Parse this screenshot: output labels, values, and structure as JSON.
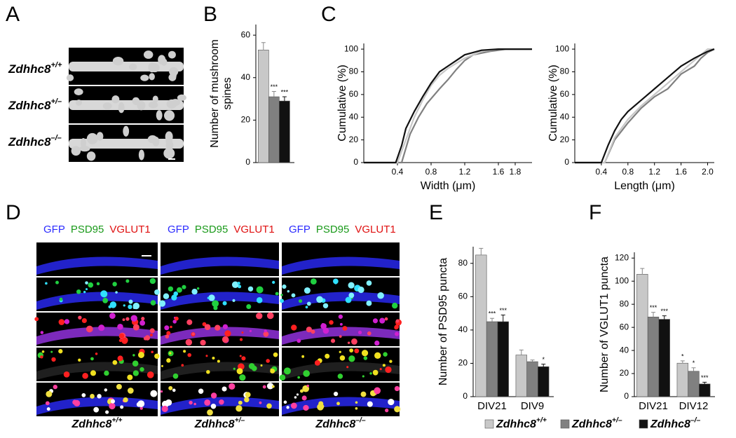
{
  "panel_labels": [
    "A",
    "B",
    "C",
    "D",
    "E",
    "F"
  ],
  "genotypes": [
    {
      "name": "Zdhhc8",
      "superscript": "+/+",
      "color": "#c8c8c8"
    },
    {
      "name": "Zdhhc8",
      "superscript": "+/–",
      "color": "#808080"
    },
    {
      "name": "Zdhhc8",
      "superscript": "–/–",
      "color": "#111111"
    }
  ],
  "channels": [
    {
      "name": "GFP",
      "color": "#2b2bff"
    },
    {
      "name": "PSD95",
      "color": "#1a9a1a"
    },
    {
      "name": "VGLUT1",
      "color": "#e01010"
    }
  ],
  "chart_data": [
    {
      "type": "bar",
      "ylabel": [
        "Number of mushroom",
        "spines"
      ],
      "categories": [
        null
      ],
      "ylim": [
        0,
        65
      ],
      "yticks": [
        0,
        20,
        40,
        60
      ],
      "series": [
        {
          "color": "#c8c8c8",
          "values": [
            53
          ],
          "errors": [
            3.5
          ],
          "significance": [
            null
          ]
        },
        {
          "color": "#808080",
          "values": [
            31
          ],
          "errors": [
            2.5
          ],
          "significance": [
            "***"
          ]
        },
        {
          "color": "#111111",
          "values": [
            29
          ],
          "errors": [
            2
          ],
          "significance": [
            "***"
          ]
        }
      ]
    },
    {
      "type": "line",
      "xlabel": "Width (μm)",
      "ylabel": "Cumulative (%)",
      "xlim": [
        0,
        2.0
      ],
      "xticks": [
        0.4,
        0.8,
        1.2,
        1.6,
        1.8
      ],
      "ylim": [
        0,
        105
      ],
      "yticks": [
        0,
        20,
        40,
        60,
        80,
        100
      ],
      "series": [
        {
          "color": "#808080",
          "x": [
            0,
            0.45,
            0.55,
            0.65,
            0.75,
            0.9,
            1.0,
            1.1,
            1.2,
            1.3,
            1.5,
            1.7,
            2.0
          ],
          "values": [
            0,
            0,
            25,
            40,
            52,
            65,
            73,
            82,
            90,
            95,
            98,
            100,
            100
          ]
        },
        {
          "color": "#c8c8c8",
          "x": [
            0,
            0.4,
            0.5,
            0.6,
            0.7,
            0.8,
            0.9,
            1.0,
            1.2,
            1.4,
            1.6,
            2.0
          ],
          "values": [
            0,
            0,
            20,
            40,
            55,
            68,
            77,
            83,
            92,
            98,
            100,
            100
          ]
        },
        {
          "color": "#111111",
          "x": [
            0,
            0.38,
            0.45,
            0.5,
            0.6,
            0.7,
            0.8,
            0.9,
            1.0,
            1.1,
            1.2,
            1.4,
            1.6,
            2.0
          ],
          "values": [
            0,
            0,
            15,
            30,
            45,
            58,
            70,
            80,
            85,
            90,
            95,
            99,
            100,
            100
          ]
        }
      ]
    },
    {
      "type": "line",
      "xlabel": "Length (μm)",
      "ylabel": "Cumulative (%)",
      "xlim": [
        0,
        2.1
      ],
      "xticks": [
        0.4,
        0.8,
        1.2,
        1.6,
        {
          "value": 2,
          "label": "2.0"
        }
      ],
      "ylim": [
        0,
        105
      ],
      "yticks": [
        0,
        20,
        40,
        60,
        80,
        100
      ],
      "series": [
        {
          "color": "#808080",
          "x": [
            0,
            0.45,
            0.6,
            0.8,
            1.0,
            1.2,
            1.4,
            1.6,
            1.8,
            1.9,
            2.0,
            2.1
          ],
          "values": [
            0,
            0,
            20,
            35,
            48,
            58,
            65,
            78,
            85,
            92,
            97,
            100
          ]
        },
        {
          "color": "#c8c8c8",
          "x": [
            0,
            0.45,
            0.6,
            0.8,
            1.0,
            1.2,
            1.4,
            1.6,
            1.8,
            2.0,
            2.1
          ],
          "values": [
            0,
            0,
            22,
            38,
            50,
            60,
            70,
            80,
            90,
            100,
            100
          ]
        },
        {
          "color": "#111111",
          "x": [
            0,
            0.4,
            0.5,
            0.6,
            0.7,
            0.8,
            1.0,
            1.2,
            1.4,
            1.6,
            1.8,
            2.0,
            2.1
          ],
          "values": [
            0,
            0,
            15,
            28,
            38,
            45,
            55,
            65,
            75,
            85,
            92,
            98,
            100
          ]
        }
      ]
    },
    {
      "type": "bar",
      "ylabel": [
        "Number of PSD95 puncta"
      ],
      "categories": [
        "DIV21",
        "DIV9"
      ],
      "ylim": [
        0,
        90
      ],
      "yticks": [
        0,
        20,
        40,
        60,
        80
      ],
      "series": [
        {
          "color": "#c8c8c8",
          "values": [
            85,
            25
          ],
          "errors": [
            4,
            3
          ],
          "significance": [
            null,
            null
          ]
        },
        {
          "color": "#808080",
          "values": [
            45,
            21
          ],
          "errors": [
            2,
            1
          ],
          "significance": [
            "***",
            null
          ]
        },
        {
          "color": "#111111",
          "values": [
            45,
            18
          ],
          "errors": [
            4,
            1.5
          ],
          "significance": [
            "***",
            "*"
          ]
        }
      ]
    },
    {
      "type": "bar",
      "ylabel": [
        "Number of VGLUT1 puncta"
      ],
      "categories": [
        "DIV21",
        "DIV12"
      ],
      "ylim": [
        0,
        125
      ],
      "yticks": [
        0,
        20,
        40,
        60,
        80,
        100,
        120
      ],
      "series": [
        {
          "color": "#c8c8c8",
          "values": [
            106,
            29
          ],
          "errors": [
            5,
            2
          ],
          "significance": [
            null,
            "*"
          ]
        },
        {
          "color": "#808080",
          "values": [
            69,
            22
          ],
          "errors": [
            4,
            3
          ],
          "significance": [
            "***",
            "*"
          ]
        },
        {
          "color": "#111111",
          "values": [
            67,
            11
          ],
          "errors": [
            3,
            1.5
          ],
          "significance": [
            "***",
            "***"
          ]
        }
      ]
    }
  ]
}
